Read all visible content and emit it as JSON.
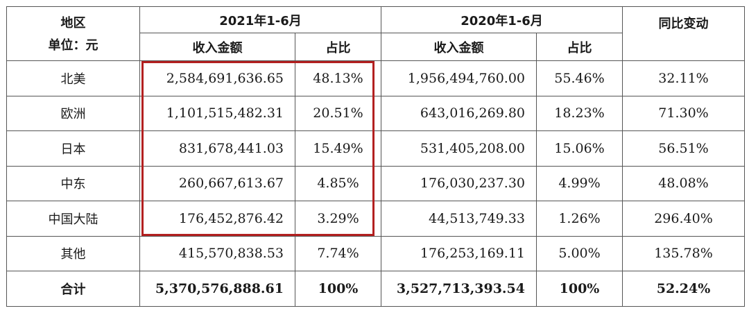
{
  "header": {
    "region": "地区",
    "unit": "单位：元",
    "period_2021": "2021年1-6月",
    "period_2020": "2020年1-6月",
    "yoy": "同比变动",
    "revenue": "收入金额",
    "share": "占比"
  },
  "rows": [
    {
      "region": "北美",
      "rev_2021": "2,584,691,636.65",
      "share_2021": "48.13%",
      "rev_2020": "1,956,494,760.00",
      "share_2020": "55.46%",
      "yoy": "32.11%"
    },
    {
      "region": "欧洲",
      "rev_2021": "1,101,515,482.31",
      "share_2021": "20.51%",
      "rev_2020": "643,016,269.80",
      "share_2020": "18.23%",
      "yoy": "71.30%"
    },
    {
      "region": "日本",
      "rev_2021": "831,678,441.03",
      "share_2021": "15.49%",
      "rev_2020": "531,405,208.00",
      "share_2020": "15.06%",
      "yoy": "56.51%"
    },
    {
      "region": "中东",
      "rev_2021": "260,667,613.67",
      "share_2021": "4.85%",
      "rev_2020": "176,030,237.30",
      "share_2020": "4.99%",
      "yoy": "48.08%"
    },
    {
      "region": "中国大陆",
      "rev_2021": "176,452,876.42",
      "share_2021": "3.29%",
      "rev_2020": "44,513,749.33",
      "share_2020": "1.26%",
      "yoy": "296.40%"
    },
    {
      "region": "其他",
      "rev_2021": "415,570,838.53",
      "share_2021": "7.74%",
      "rev_2020": "176,253,169.11",
      "share_2020": "5.00%",
      "yoy": "135.78%"
    }
  ],
  "total": {
    "region": "合计",
    "rev_2021": "5,370,576,888.61",
    "share_2021": "100%",
    "rev_2020": "3,527,713,393.54",
    "share_2020": "100%",
    "yoy": "52.24%"
  },
  "highlight_color": "#b32020"
}
